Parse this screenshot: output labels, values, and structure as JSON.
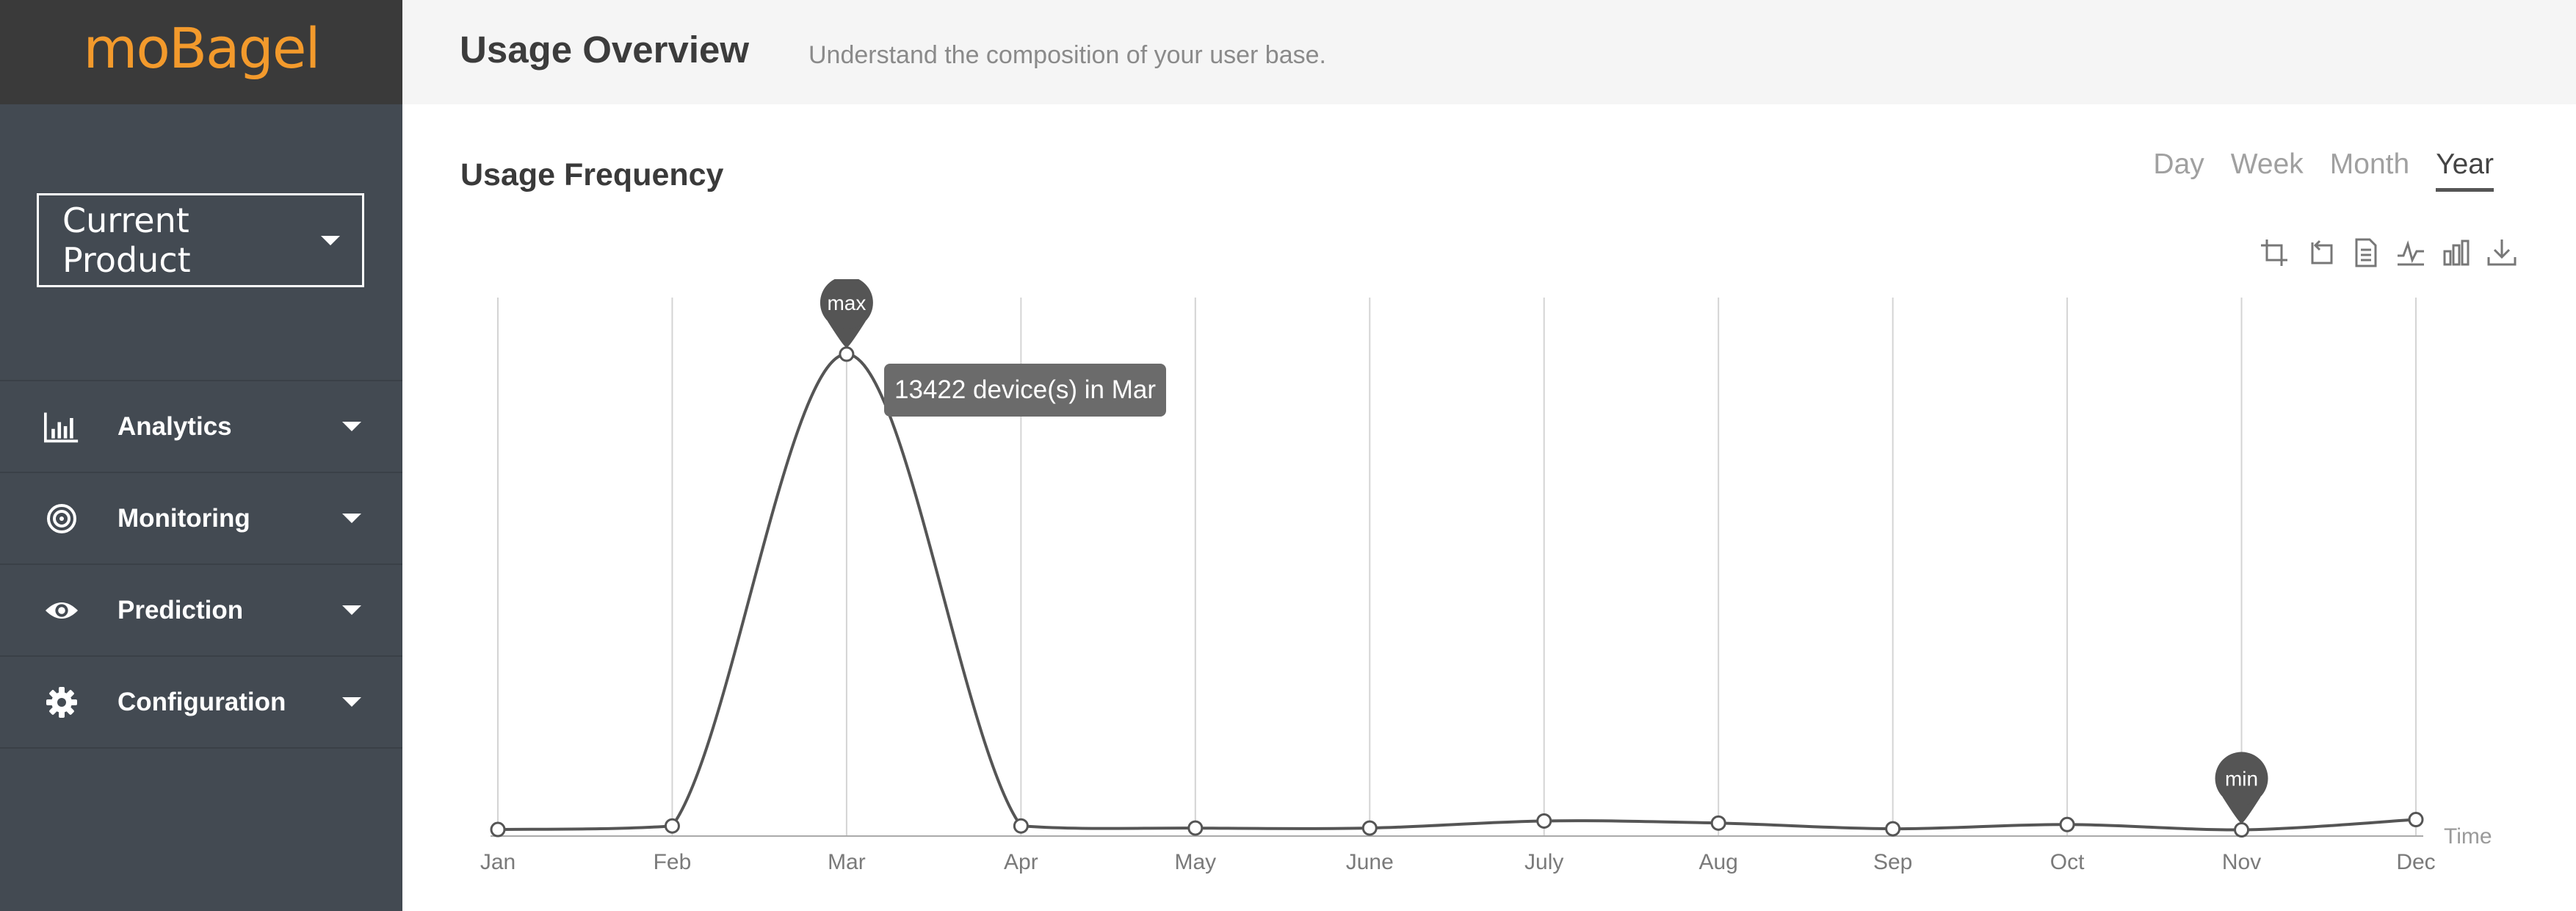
{
  "app": {
    "logo_text": "moBagel",
    "product_select": "Current Product"
  },
  "sidebar": {
    "items": [
      {
        "label": "Analytics",
        "icon": "bar-chart-icon"
      },
      {
        "label": "Monitoring",
        "icon": "target-icon"
      },
      {
        "label": "Prediction",
        "icon": "eye-icon"
      },
      {
        "label": "Configuration",
        "icon": "gear-icon"
      }
    ]
  },
  "header": {
    "title": "Usage Overview",
    "subtitle": "Understand the composition of your user base."
  },
  "section": {
    "title": "Usage Frequency",
    "tabs": [
      "Day",
      "Week",
      "Month",
      "Year"
    ],
    "active_tab": "Year"
  },
  "toolbox": [
    "zoom-icon",
    "zoom-reset-icon",
    "data-view-icon",
    "line-chart-icon",
    "bar-chart-icon",
    "download-icon"
  ],
  "tooltip": "13422 device(s) in Mar",
  "colors": {
    "sidebar": "#434a52",
    "logo_bar": "#3a3a3a",
    "logo": "#f39a2c",
    "line": "#555555",
    "marker": "#555555"
  },
  "chart_data": {
    "type": "line",
    "x": [
      "Jan",
      "Feb",
      "Mar",
      "Apr",
      "May",
      "June",
      "July",
      "Aug",
      "Sep",
      "Oct",
      "Nov",
      "Dec"
    ],
    "series": [
      {
        "values": [
          20,
          120,
          13422,
          120,
          60,
          60,
          260,
          200,
          40,
          160,
          10,
          300
        ]
      }
    ],
    "xlabel": "Time",
    "markers": [
      {
        "label": "max",
        "x": "Mar",
        "value": 13422
      },
      {
        "label": "min",
        "x": "Nov",
        "value": 10
      }
    ],
    "ylim": [
      0,
      14500
    ],
    "grid": "vertical"
  }
}
